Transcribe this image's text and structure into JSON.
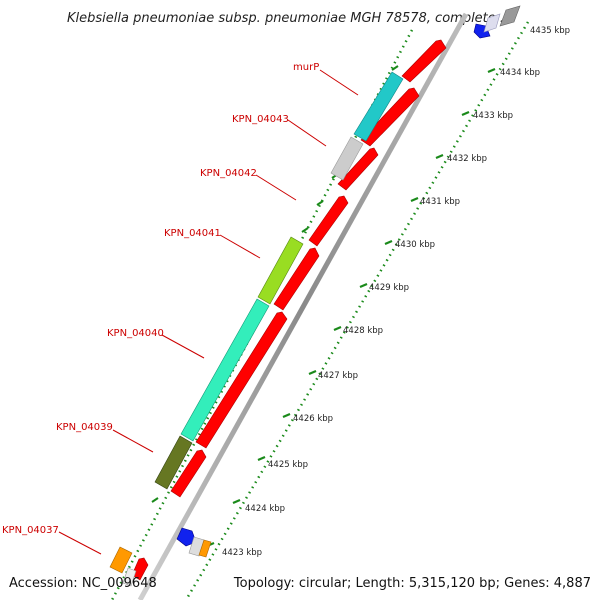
{
  "title": "Klebsiella pneumoniae subsp. pneumoniae MGH 78578, complete ...",
  "footer": {
    "accession": "Accession: NC_009648",
    "summary": "Topology: circular; Length: 5,315,120 bp; Genes: 4,887"
  },
  "gene_labels": [
    "murP",
    "KPN_04043",
    "KPN_04042",
    "KPN_04041",
    "KPN_04040",
    "KPN_04039",
    "KPN_04037"
  ],
  "tick_labels": [
    "4435 kbp",
    "4434 kbp",
    "4433 kbp",
    "4432 kbp",
    "4431 kbp",
    "4430 kbp",
    "4429 kbp",
    "4428 kbp",
    "4427 kbp",
    "4426 kbp",
    "4425 kbp",
    "4424 kbp",
    "4423 kbp"
  ],
  "colors": {
    "cds": "#ff0000",
    "backbone": "#999999",
    "gc_skew_dots": "#1a8a1a",
    "label": "#cc0000",
    "murP": "#22c8c8",
    "KPN_04043": "#cccccc",
    "KPN_04041": "#99dd22",
    "KPN_04040": "#33eebb",
    "KPN_04039": "#667722",
    "KPN_04037": "#ff9900",
    "trna": "#1122ee"
  }
}
